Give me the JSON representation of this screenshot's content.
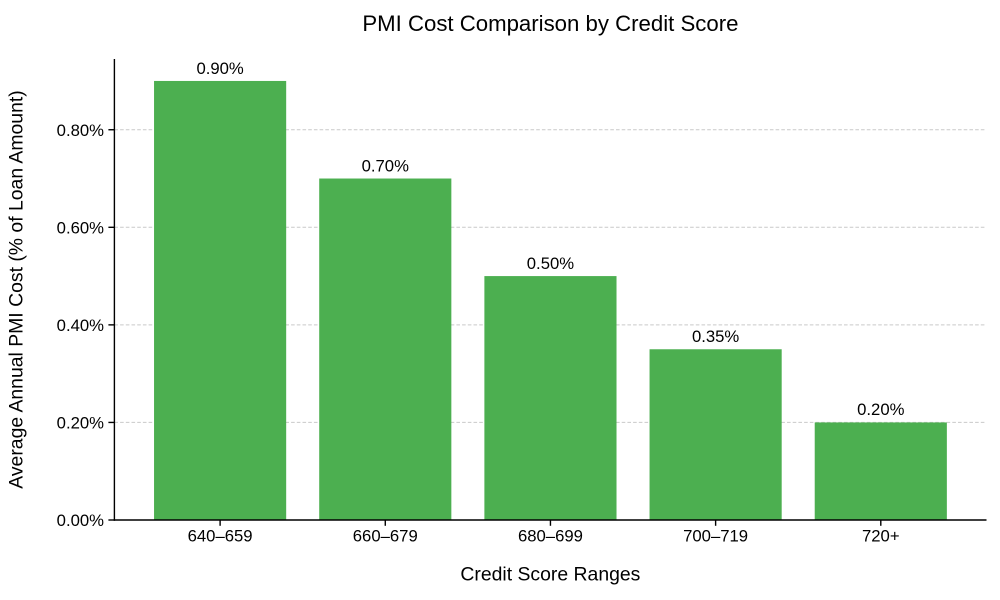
{
  "chart_data": {
    "type": "bar",
    "title": "PMI Cost Comparison by Credit Score",
    "xlabel": "Credit Score Ranges",
    "ylabel": "Average Annual PMI Cost (% of Loan Amount)",
    "categories": [
      "640–659",
      "660–679",
      "680–699",
      "700–719",
      "720+"
    ],
    "values": [
      0.9,
      0.7,
      0.5,
      0.35,
      0.2
    ],
    "value_labels": [
      "0.90%",
      "0.70%",
      "0.50%",
      "0.35%",
      "0.20%"
    ],
    "yticks": [
      0.0,
      0.2,
      0.4,
      0.6,
      0.8
    ],
    "ytick_labels": [
      "0.00%",
      "0.20%",
      "0.40%",
      "0.60%",
      "0.80%"
    ],
    "ylim": [
      0,
      0.945
    ],
    "legend": "none",
    "grid": "horizontal dashed",
    "colors": {
      "bar": "#4caf50",
      "grid": "#c9c9c9",
      "axis": "#000000",
      "text": "#000000",
      "background": "#ffffff"
    }
  }
}
